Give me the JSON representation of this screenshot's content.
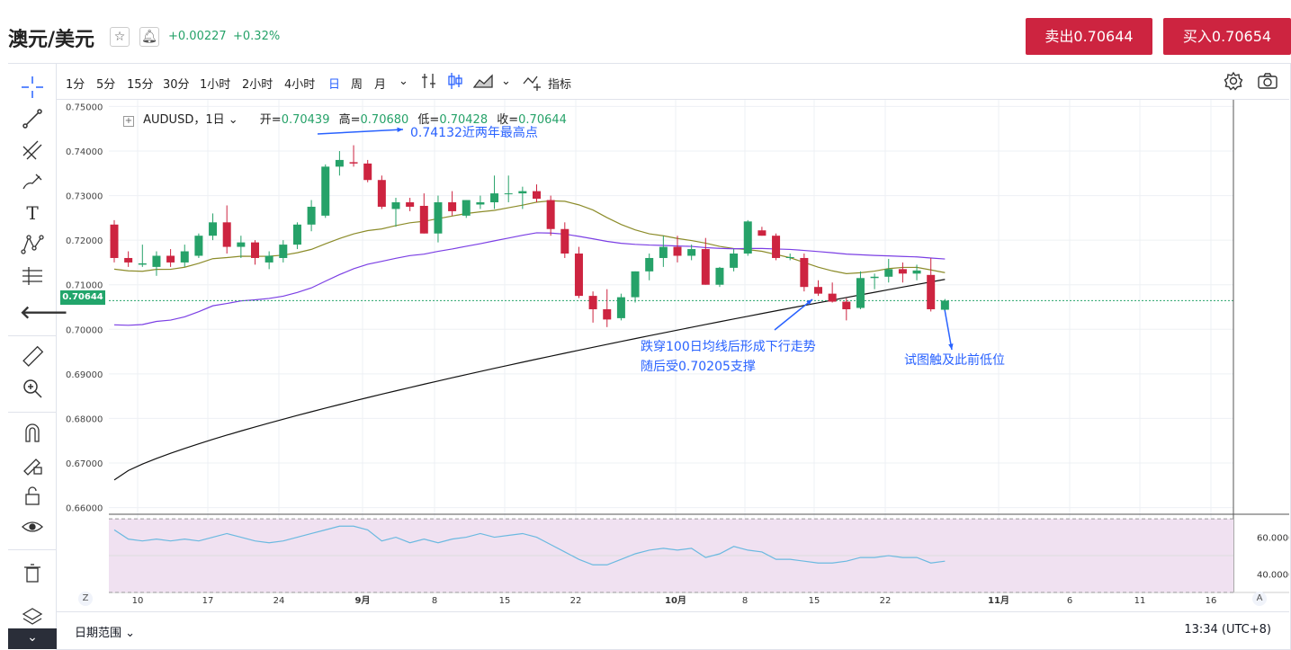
{
  "header": {
    "pair": "澳元/美元",
    "change_abs": "+0.00227",
    "change_pct": "+0.32%",
    "sell_label": "卖出0.70644",
    "buy_label": "买入0.70654"
  },
  "toolbar": {
    "intervals": [
      "1分",
      "5分",
      "15分",
      "30分",
      "1小时",
      "2小时",
      "4小时",
      "日",
      "周",
      "月"
    ],
    "indicators_label": "指标"
  },
  "legend": {
    "symbol": "AUDUSD，1日",
    "open_label": "开=",
    "open": "0.70439",
    "high_label": "高=",
    "high": "0.70680",
    "low_label": "低=",
    "low": "0.70428",
    "close_label": "收=",
    "close": "0.70644"
  },
  "annotations": {
    "top": "0.74132近两年最高点",
    "mid_line1": "跌穿100日均线后形成下行走势",
    "mid_line2": "随后受0.70205支撑",
    "right": "试图触及此前低位"
  },
  "price_tag": "0.70644",
  "bottom": {
    "range_label": "日期范围",
    "time": "13:34 (UTC+8)",
    "z": "Z",
    "a": "A"
  },
  "colors": {
    "up": "#26a269",
    "down": "#cd2440",
    "ma_short": "#8c8c2a",
    "ma_mid": "#7b3fe4",
    "ma_long": "#111111",
    "rsi": "#6bb9e0",
    "rsi_band": "#f0e1f1"
  },
  "chart_data": {
    "type": "candlestick",
    "y_ticks": [
      "0.75000",
      "0.74000",
      "0.73000",
      "0.72000",
      "0.71000",
      "0.70000",
      "0.69000",
      "0.68000",
      "0.67000",
      "0.66000"
    ],
    "ylim": [
      0.6585,
      0.7515
    ],
    "x_ticks": [
      "10",
      "17",
      "24",
      "9月",
      "8",
      "15",
      "22",
      "10月",
      "8",
      "15",
      "22",
      "11月",
      "6",
      "11",
      "16"
    ],
    "rsi_ticks": [
      "60.0000",
      "40.0000"
    ],
    "ohlc": [
      [
        0.7235,
        0.7245,
        0.715,
        0.716
      ],
      [
        0.716,
        0.7175,
        0.714,
        0.715
      ],
      [
        0.7145,
        0.719,
        0.714,
        0.7148
      ],
      [
        0.714,
        0.7175,
        0.712,
        0.7165
      ],
      [
        0.7165,
        0.718,
        0.714,
        0.715
      ],
      [
        0.715,
        0.719,
        0.714,
        0.7175
      ],
      [
        0.7165,
        0.7215,
        0.716,
        0.721
      ],
      [
        0.721,
        0.726,
        0.72,
        0.724
      ],
      [
        0.724,
        0.7278,
        0.717,
        0.7185
      ],
      [
        0.7185,
        0.721,
        0.716,
        0.7195
      ],
      [
        0.7195,
        0.72,
        0.7145,
        0.716
      ],
      [
        0.715,
        0.7175,
        0.7135,
        0.7165
      ],
      [
        0.716,
        0.72,
        0.715,
        0.719
      ],
      [
        0.719,
        0.724,
        0.718,
        0.7235
      ],
      [
        0.7235,
        0.729,
        0.722,
        0.7275
      ],
      [
        0.7255,
        0.737,
        0.725,
        0.7365
      ],
      [
        0.7365,
        0.74,
        0.7345,
        0.738
      ],
      [
        0.7375,
        0.7413,
        0.7365,
        0.7372
      ],
      [
        0.7372,
        0.738,
        0.733,
        0.7335
      ],
      [
        0.7335,
        0.7345,
        0.727,
        0.7275
      ],
      [
        0.727,
        0.7295,
        0.723,
        0.7285
      ],
      [
        0.7285,
        0.7295,
        0.7265,
        0.7275
      ],
      [
        0.7277,
        0.7305,
        0.7215,
        0.7215
      ],
      [
        0.7215,
        0.73,
        0.7195,
        0.7285
      ],
      [
        0.7285,
        0.731,
        0.7255,
        0.7265
      ],
      [
        0.7255,
        0.729,
        0.725,
        0.729
      ],
      [
        0.728,
        0.73,
        0.727,
        0.7285
      ],
      [
        0.7285,
        0.7345,
        0.727,
        0.7305
      ],
      [
        0.7305,
        0.7345,
        0.7285,
        0.7305
      ],
      [
        0.7305,
        0.732,
        0.727,
        0.731
      ],
      [
        0.731,
        0.7325,
        0.7285,
        0.7293
      ],
      [
        0.729,
        0.73,
        0.721,
        0.7225
      ],
      [
        0.7225,
        0.724,
        0.716,
        0.717
      ],
      [
        0.717,
        0.7185,
        0.707,
        0.7075
      ],
      [
        0.7075,
        0.7085,
        0.7015,
        0.7045
      ],
      [
        0.7045,
        0.709,
        0.7005,
        0.7022
      ],
      [
        0.7025,
        0.708,
        0.702,
        0.7072
      ],
      [
        0.7072,
        0.713,
        0.706,
        0.713
      ],
      [
        0.713,
        0.717,
        0.711,
        0.716
      ],
      [
        0.716,
        0.721,
        0.714,
        0.7185
      ],
      [
        0.7185,
        0.721,
        0.715,
        0.7165
      ],
      [
        0.7165,
        0.719,
        0.7155,
        0.718
      ],
      [
        0.718,
        0.7205,
        0.71,
        0.71
      ],
      [
        0.71,
        0.714,
        0.7095,
        0.7138
      ],
      [
        0.7138,
        0.718,
        0.713,
        0.717
      ],
      [
        0.717,
        0.7245,
        0.7165,
        0.7242
      ],
      [
        0.7222,
        0.723,
        0.721,
        0.721
      ],
      [
        0.721,
        0.7215,
        0.7155,
        0.716
      ],
      [
        0.716,
        0.717,
        0.7155,
        0.7162
      ],
      [
        0.716,
        0.717,
        0.7085,
        0.7095
      ],
      [
        0.7095,
        0.711,
        0.7075,
        0.708
      ],
      [
        0.708,
        0.7105,
        0.706,
        0.7062
      ],
      [
        0.7062,
        0.707,
        0.702,
        0.7045
      ],
      [
        0.7048,
        0.713,
        0.7045,
        0.7115
      ],
      [
        0.7115,
        0.7125,
        0.709,
        0.7118
      ],
      [
        0.7118,
        0.7158,
        0.7105,
        0.7135
      ],
      [
        0.7135,
        0.715,
        0.7105,
        0.7125
      ],
      [
        0.7125,
        0.7145,
        0.711,
        0.7132
      ],
      [
        0.7122,
        0.716,
        0.704,
        0.7045
      ],
      [
        0.70439,
        0.7068,
        0.70428,
        0.70644
      ]
    ],
    "rsi": [
      64,
      59,
      58,
      59,
      58,
      59,
      58,
      60,
      62,
      60,
      58,
      57,
      58,
      60,
      62,
      64,
      66,
      66,
      64,
      58,
      60,
      57,
      59,
      57,
      59,
      60,
      62,
      60,
      61,
      62,
      60,
      56,
      52,
      48,
      45,
      45,
      48,
      51,
      53,
      54,
      53,
      54,
      49,
      51,
      55,
      53,
      52,
      48,
      48,
      47,
      46,
      46,
      47,
      49,
      49,
      50,
      49,
      49,
      46,
      47
    ]
  }
}
